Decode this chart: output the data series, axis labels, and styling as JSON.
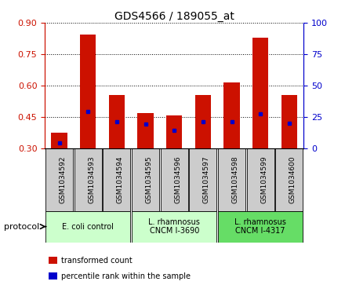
{
  "title": "GDS4566 / 189055_at",
  "samples": [
    "GSM1034592",
    "GSM1034593",
    "GSM1034594",
    "GSM1034595",
    "GSM1034596",
    "GSM1034597",
    "GSM1034598",
    "GSM1034599",
    "GSM1034600"
  ],
  "bar_bottom": 0.3,
  "bar_tops": [
    0.375,
    0.845,
    0.555,
    0.47,
    0.455,
    0.555,
    0.615,
    0.83,
    0.555
  ],
  "blue_positions": [
    0.325,
    0.475,
    0.425,
    0.415,
    0.385,
    0.425,
    0.425,
    0.465,
    0.42
  ],
  "ylim_left": [
    0.3,
    0.9
  ],
  "yticks_left": [
    0.3,
    0.45,
    0.6,
    0.75,
    0.9
  ],
  "yticks_right": [
    0,
    25,
    50,
    75,
    100
  ],
  "bar_color": "#cc1100",
  "blue_color": "#0000cc",
  "sample_cell_color": "#cccccc",
  "group_configs": [
    {
      "start": 0,
      "end": 3,
      "label": "E. coli control",
      "color": "#ccffcc"
    },
    {
      "start": 3,
      "end": 6,
      "label": "L. rhamnosus\nCNCM I-3690",
      "color": "#ccffcc"
    },
    {
      "start": 6,
      "end": 9,
      "label": "L. rhamnosus\nCNCM I-4317",
      "color": "#66dd66"
    }
  ],
  "legend_labels": [
    "transformed count",
    "percentile rank within the sample"
  ],
  "legend_colors": [
    "#cc1100",
    "#0000cc"
  ],
  "protocol_label": "protocol"
}
